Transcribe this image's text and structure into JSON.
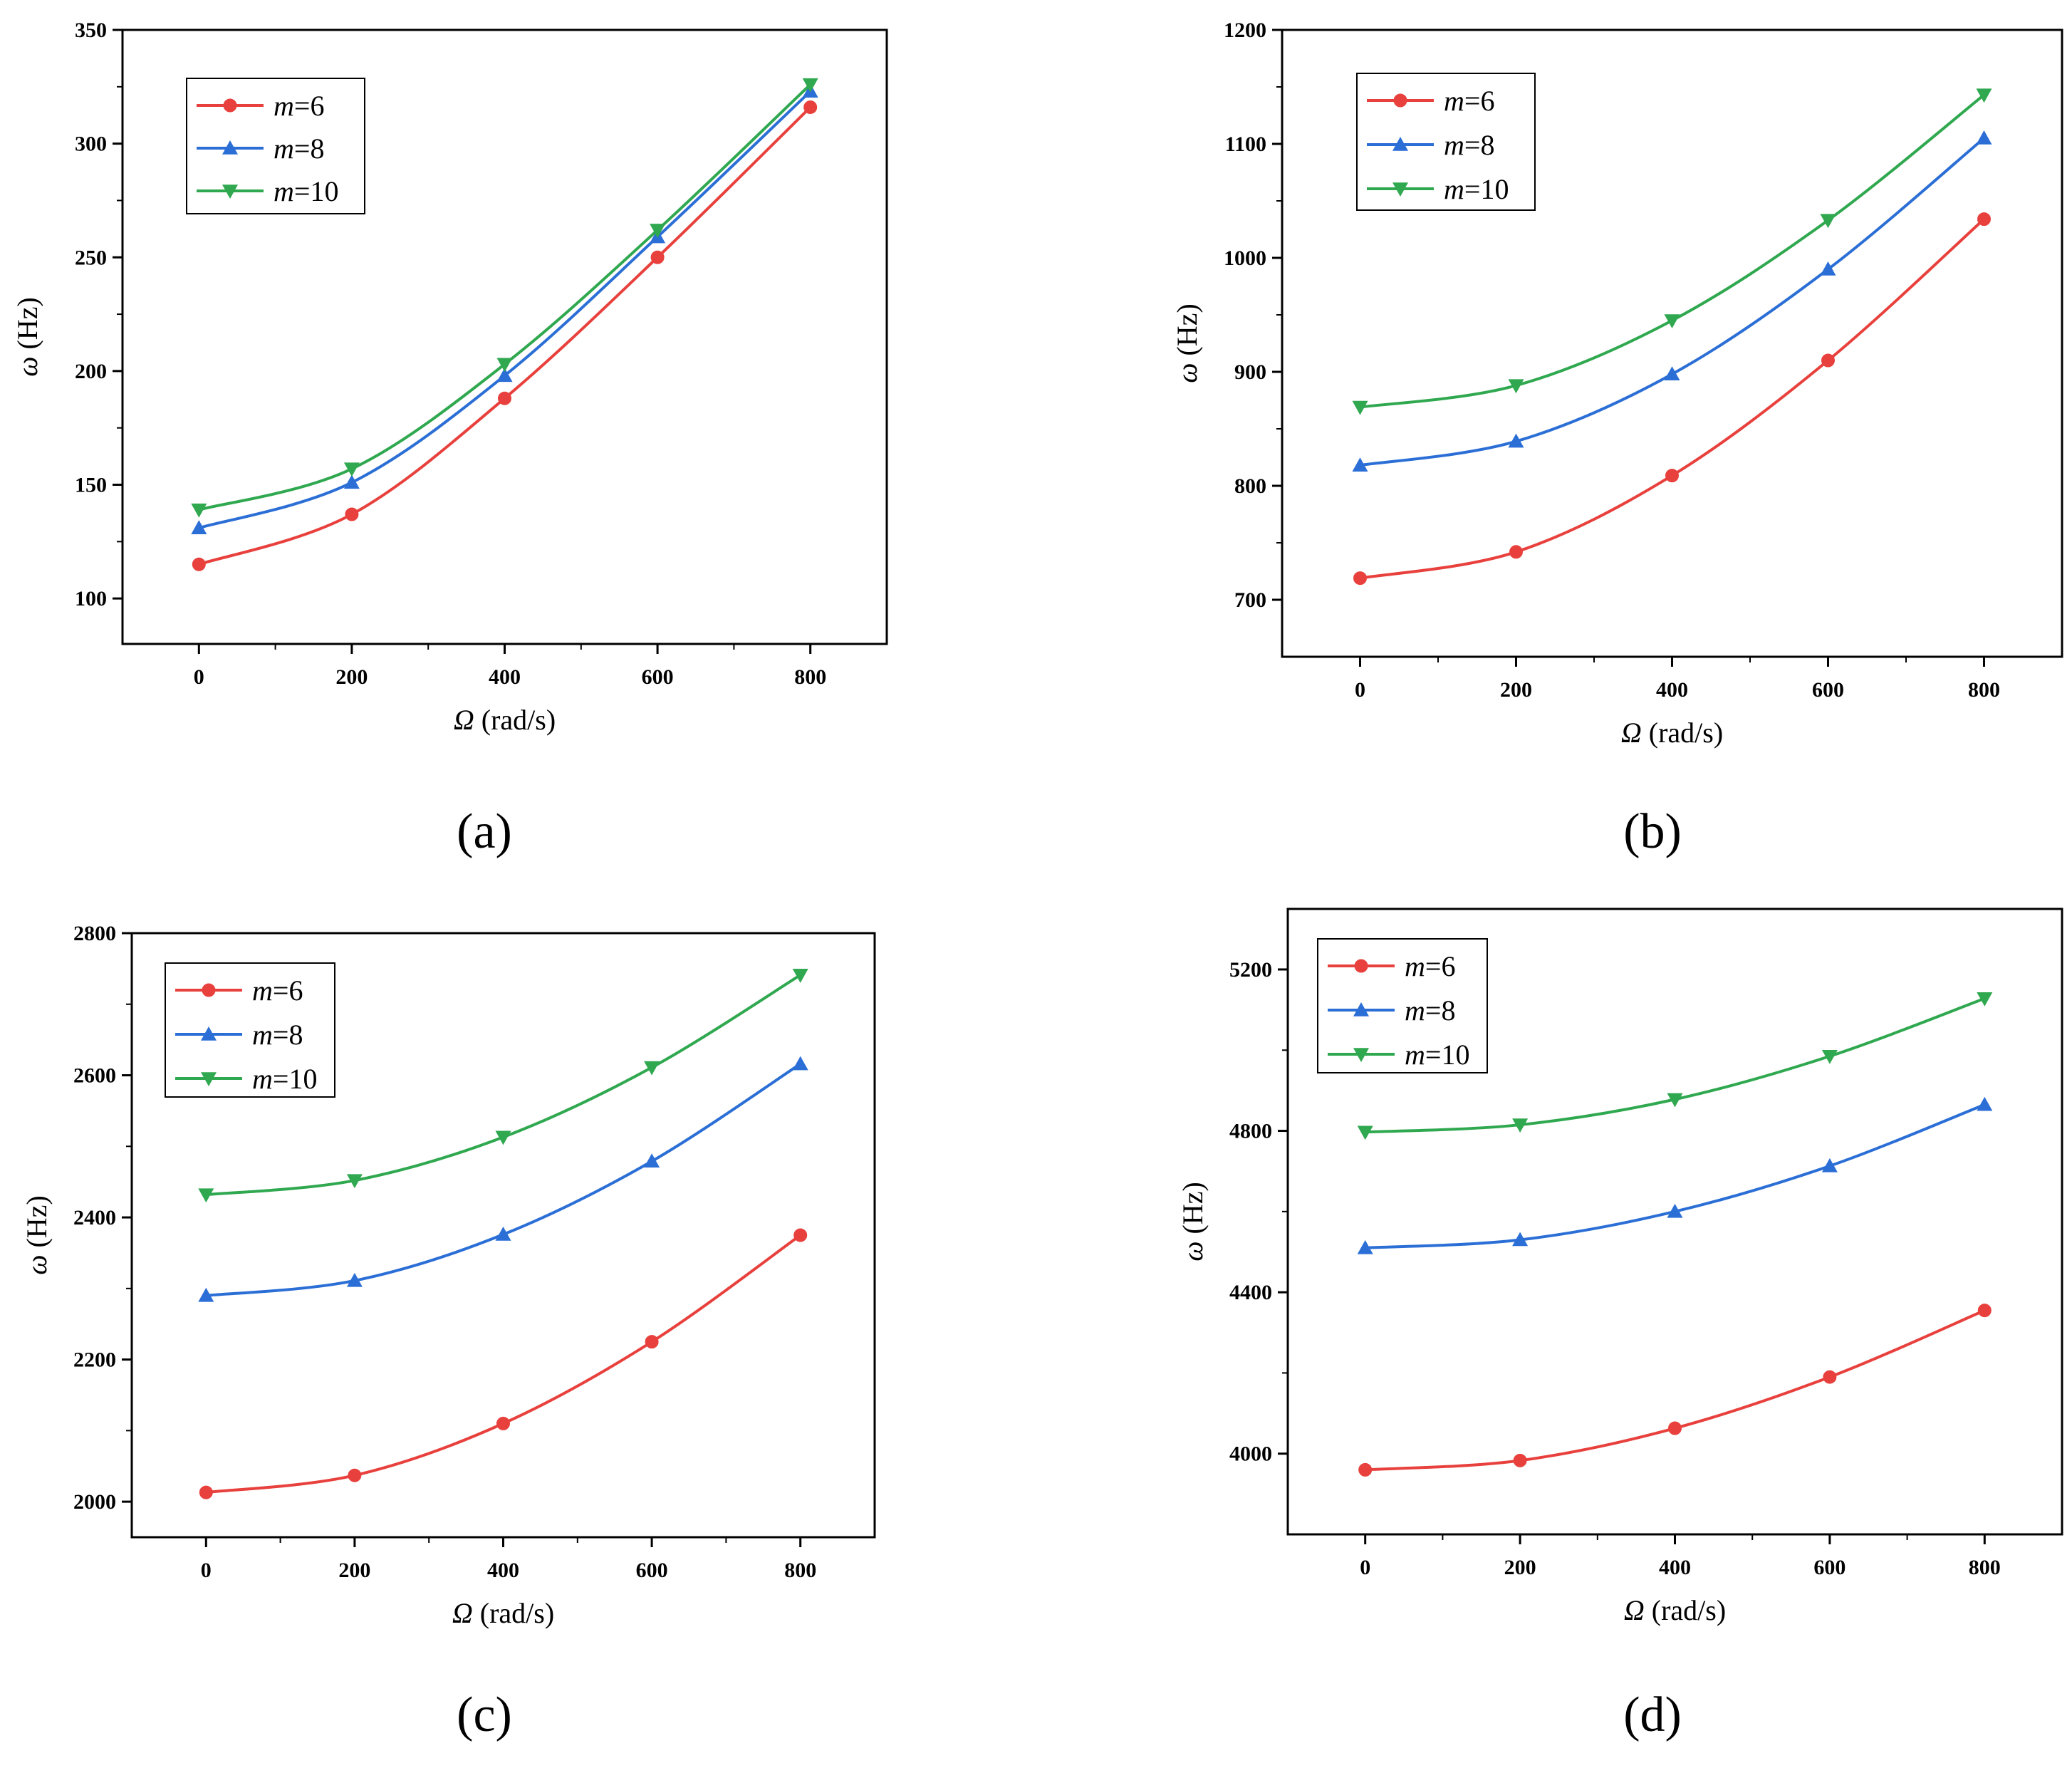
{
  "chart_data": [
    {
      "type": "line",
      "panel": "(a)",
      "xlabel": "Ω (rad/s)",
      "ylabel": "ω (Hz)",
      "xlim": [
        -100,
        900
      ],
      "ylim": [
        80,
        350
      ],
      "x_ticks": [
        0,
        200,
        400,
        600,
        800
      ],
      "y_ticks": [
        100,
        150,
        200,
        250,
        300,
        350
      ],
      "legend_position": "top-left",
      "x": [
        0,
        200,
        400,
        600,
        800
      ],
      "series": [
        {
          "name": "m=6",
          "color": "#e8413d",
          "marker": "circle",
          "values": [
            115,
            137,
            188,
            250,
            316
          ]
        },
        {
          "name": "m=8",
          "color": "#2b6fd6",
          "marker": "triangle-up",
          "values": [
            131,
            151,
            198,
            259,
            323
          ]
        },
        {
          "name": "m=10",
          "color": "#2fa84f",
          "marker": "triangle-down",
          "values": [
            139,
            157,
            203,
            262,
            326
          ]
        }
      ]
    },
    {
      "type": "line",
      "panel": "(b)",
      "xlabel": "Ω (rad/s)",
      "ylabel": "ω (Hz)",
      "xlim": [
        -100,
        900
      ],
      "ylim": [
        650,
        1200
      ],
      "x_ticks": [
        0,
        200,
        400,
        600,
        800
      ],
      "y_ticks": [
        700,
        800,
        900,
        1000,
        1100,
        1200
      ],
      "legend_position": "top-left",
      "x": [
        0,
        200,
        400,
        600,
        800
      ],
      "series": [
        {
          "name": "m=6",
          "color": "#e8413d",
          "marker": "circle",
          "values": [
            719,
            742,
            809,
            910,
            1034
          ]
        },
        {
          "name": "m=8",
          "color": "#2b6fd6",
          "marker": "triangle-up",
          "values": [
            818,
            839,
            898,
            990,
            1105
          ]
        },
        {
          "name": "m=10",
          "color": "#2fa84f",
          "marker": "triangle-down",
          "values": [
            869,
            888,
            945,
            1033,
            1143
          ]
        }
      ]
    },
    {
      "type": "line",
      "panel": "(c)",
      "xlabel": "Ω (rad/s)",
      "ylabel": "ω (Hz)",
      "xlim": [
        -100,
        900
      ],
      "ylim": [
        1950,
        2800
      ],
      "x_ticks": [
        0,
        200,
        400,
        600,
        800
      ],
      "y_ticks": [
        2000,
        2200,
        2400,
        2600,
        2800
      ],
      "legend_position": "top-left",
      "x": [
        0,
        200,
        400,
        600,
        800
      ],
      "series": [
        {
          "name": "m=6",
          "color": "#e8413d",
          "marker": "circle",
          "values": [
            2013,
            2037,
            2110,
            2225,
            2375
          ]
        },
        {
          "name": "m=8",
          "color": "#2b6fd6",
          "marker": "triangle-up",
          "values": [
            2290,
            2311,
            2376,
            2479,
            2616
          ]
        },
        {
          "name": "m=10",
          "color": "#2fa84f",
          "marker": "triangle-down",
          "values": [
            2432,
            2452,
            2513,
            2611,
            2741
          ]
        }
      ]
    },
    {
      "type": "line",
      "panel": "(d)",
      "xlabel": "Ω (rad/s)",
      "ylabel": "ω (Hz)",
      "xlim": [
        -100,
        900
      ],
      "ylim": [
        3800,
        5350
      ],
      "x_ticks": [
        0,
        200,
        400,
        600,
        800
      ],
      "y_ticks": [
        4000,
        4400,
        4800,
        5200
      ],
      "legend_position": "top-left",
      "x": [
        0,
        200,
        400,
        600,
        800
      ],
      "series": [
        {
          "name": "m=6",
          "color": "#e8413d",
          "marker": "circle",
          "values": [
            3960,
            3983,
            4063,
            4190,
            4355
          ]
        },
        {
          "name": "m=8",
          "color": "#2b6fd6",
          "marker": "triangle-up",
          "values": [
            4510,
            4530,
            4600,
            4713,
            4865
          ]
        },
        {
          "name": "m=10",
          "color": "#2fa84f",
          "marker": "triangle-down",
          "values": [
            4797,
            4815,
            4878,
            4985,
            5128
          ]
        }
      ]
    }
  ]
}
